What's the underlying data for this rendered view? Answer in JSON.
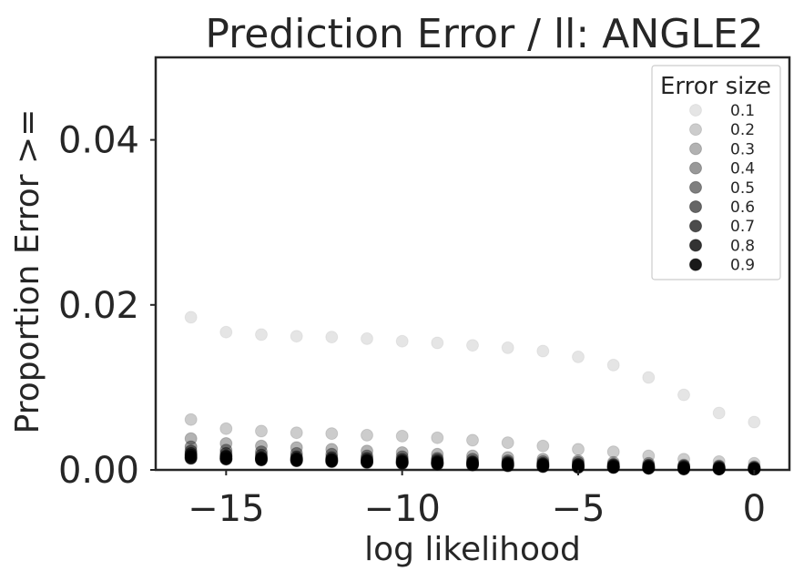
{
  "chart_data": {
    "type": "scatter",
    "title": "Prediction Error / ll: ANGLE2",
    "xlabel": "log likelihood",
    "ylabel": "Proportion Error >=",
    "xlim": [
      -17,
      1
    ],
    "ylim": [
      0,
      0.05
    ],
    "xticks": [
      -15,
      -10,
      -5,
      0
    ],
    "xtick_labels": [
      "−15",
      "−10",
      "−5",
      "0"
    ],
    "yticks": [
      0,
      0.02,
      0.04
    ],
    "ytick_labels": [
      "0.00",
      "0.02",
      "0.04"
    ],
    "grid": false,
    "legend": {
      "title": "Error size",
      "position": "top-right"
    },
    "x": [
      -16,
      -15,
      -14,
      -13,
      -12,
      -11,
      -10,
      -9,
      -8,
      -7,
      -6,
      -5,
      -4,
      -3,
      -2,
      -1,
      0
    ],
    "series": [
      {
        "name": "0.1",
        "alpha": 0.1,
        "values": [
          0.0185,
          0.0167,
          0.0164,
          0.0162,
          0.0161,
          0.0159,
          0.0156,
          0.0154,
          0.0151,
          0.0148,
          0.0144,
          0.0137,
          0.0127,
          0.0112,
          0.0091,
          0.0069,
          0.0058
        ]
      },
      {
        "name": "0.2",
        "alpha": 0.2,
        "values": [
          0.0061,
          0.005,
          0.0047,
          0.0045,
          0.0044,
          0.0042,
          0.0041,
          0.0039,
          0.0036,
          0.0033,
          0.0029,
          0.0025,
          0.0022,
          0.0017,
          0.0013,
          0.001,
          0.0008
        ]
      },
      {
        "name": "0.3",
        "alpha": 0.3,
        "values": [
          0.0038,
          0.0032,
          0.0029,
          0.0027,
          0.0025,
          0.0023,
          0.0021,
          0.0019,
          0.0017,
          0.0015,
          0.0013,
          0.0011,
          0.0009,
          0.0008,
          0.0006,
          0.0005,
          0.0004
        ]
      },
      {
        "name": "0.4",
        "alpha": 0.4,
        "values": [
          0.0028,
          0.0024,
          0.0022,
          0.002,
          0.0019,
          0.0017,
          0.0016,
          0.0014,
          0.0013,
          0.0011,
          0.001,
          0.0009,
          0.0007,
          0.0006,
          0.0005,
          0.0004,
          0.0003
        ]
      },
      {
        "name": "0.5",
        "alpha": 0.5,
        "values": [
          0.0023,
          0.002,
          0.0018,
          0.0016,
          0.0015,
          0.0014,
          0.0013,
          0.0012,
          0.001,
          0.0009,
          0.0008,
          0.0007,
          0.0006,
          0.0005,
          0.0004,
          0.0003,
          0.0002
        ]
      },
      {
        "name": "0.6",
        "alpha": 0.6,
        "values": [
          0.002,
          0.0017,
          0.0015,
          0.0014,
          0.0013,
          0.0012,
          0.0011,
          0.001,
          0.0009,
          0.0008,
          0.0007,
          0.0006,
          0.0005,
          0.0004,
          0.0003,
          0.0002,
          0.0002
        ]
      },
      {
        "name": "0.7",
        "alpha": 0.7,
        "values": [
          0.0018,
          0.0016,
          0.0014,
          0.0013,
          0.0012,
          0.0011,
          0.001,
          0.0009,
          0.0008,
          0.0007,
          0.0006,
          0.0005,
          0.0004,
          0.0003,
          0.0002,
          0.0002,
          0.0001
        ]
      },
      {
        "name": "0.8",
        "alpha": 0.8,
        "values": [
          0.0016,
          0.0014,
          0.0013,
          0.0012,
          0.0011,
          0.001,
          0.0009,
          0.0008,
          0.0007,
          0.0006,
          0.0005,
          0.0004,
          0.0003,
          0.0002,
          0.0002,
          0.0001,
          0.0001
        ]
      },
      {
        "name": "0.9",
        "alpha": 0.9,
        "values": [
          0.0014,
          0.0013,
          0.0012,
          0.0011,
          0.001,
          0.0009,
          0.0008,
          0.0007,
          0.0006,
          0.0005,
          0.0004,
          0.0003,
          0.0003,
          0.0002,
          0.0001,
          0.0001,
          0.0001
        ]
      }
    ]
  }
}
